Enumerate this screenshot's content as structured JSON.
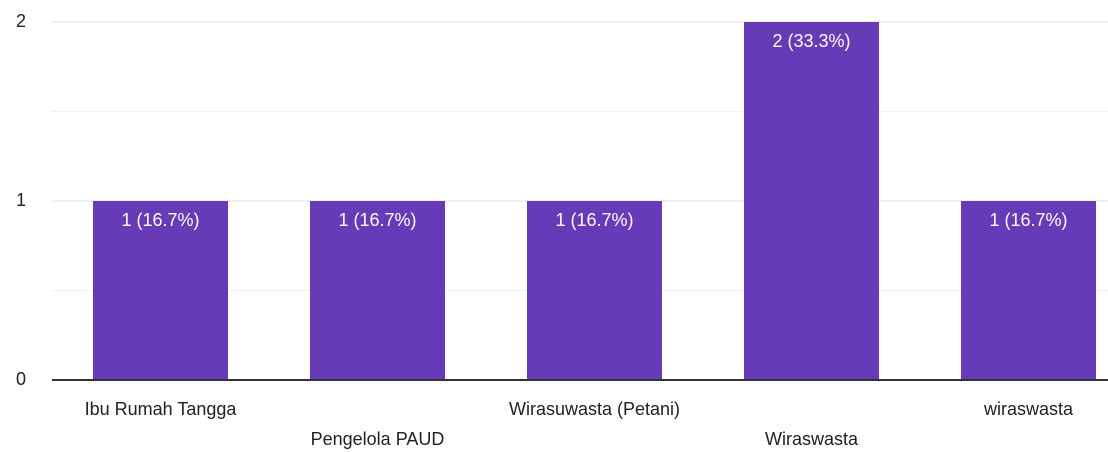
{
  "chart_data": {
    "type": "bar",
    "categories": [
      "Ibu Rumah Tangga",
      "Pengelola PAUD",
      "Wirasuwasta (Petani)",
      "Wiraswasta",
      "wiraswasta"
    ],
    "values": [
      1,
      1,
      1,
      2,
      1
    ],
    "value_labels": [
      "1 (16.7%)",
      "1 (16.7%)",
      "1 (16.7%)",
      "2 (33.3%)",
      "1 (16.7%)"
    ],
    "color": "#673ab7",
    "ylim": [
      0,
      2
    ],
    "yticks": [
      0,
      1,
      2
    ],
    "minor_yticks": [
      0.5,
      1.5
    ],
    "grid": true
  }
}
